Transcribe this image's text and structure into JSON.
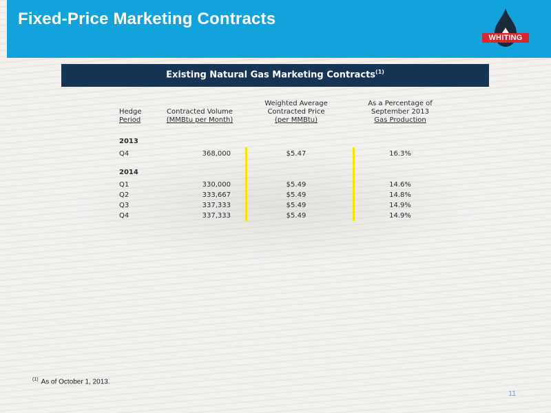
{
  "slide": {
    "title": "Fixed-Price Marketing Contracts",
    "logo_text": "WHITING",
    "banner_title": "Existing Natural Gas Marketing Contracts",
    "banner_footnote_marker": "(1)",
    "page_number": "11",
    "footnote_marker": "(1)",
    "footnote_text": "As of October 1, 2013."
  },
  "colors": {
    "header_bg": "#13a3dc",
    "banner_bg": "#163556",
    "logo_red": "#d8262e",
    "logo_dark": "#1a2a3a",
    "highlight": "#f5e600"
  },
  "table": {
    "headers": {
      "period_line1": "Hedge",
      "period_line2": "Period",
      "volume_line1": "Contracted Volume",
      "volume_line2": "(MMBtu per Month)",
      "price_line1": "Weighted Average",
      "price_line2": "Contracted Price",
      "price_line3": "(per MMBtu)",
      "pct_line1": "As a Percentage of",
      "pct_line2": "September 2013",
      "pct_line3": "Gas Production"
    },
    "groups": [
      {
        "year": "2013",
        "rows": [
          {
            "period": "Q4",
            "volume": "368,000",
            "price": "$5.47",
            "pct": "16.3%"
          }
        ]
      },
      {
        "year": "2014",
        "rows": [
          {
            "period": "Q1",
            "volume": "330,000",
            "price": "$5.49",
            "pct": "14.6%"
          },
          {
            "period": "Q2",
            "volume": "333,667",
            "price": "$5.49",
            "pct": "14.8%"
          },
          {
            "period": "Q3",
            "volume": "337,333",
            "price": "$5.49",
            "pct": "14.9%"
          },
          {
            "period": "Q4",
            "volume": "337,333",
            "price": "$5.49",
            "pct": "14.9%"
          }
        ]
      }
    ]
  }
}
